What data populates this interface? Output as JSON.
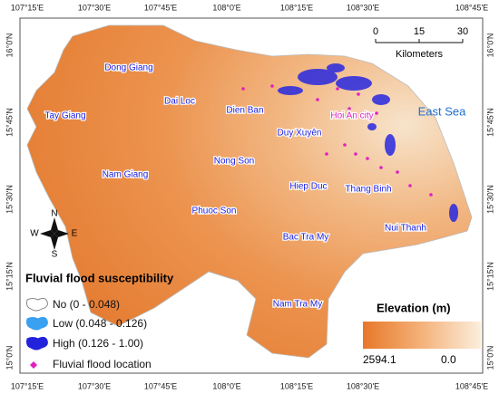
{
  "map": {
    "lon_ticks": [
      "107°15'E",
      "107°30'E",
      "107°45'E",
      "108°0'E",
      "108°15'E",
      "108°30'E",
      "108°45'E"
    ],
    "lat_ticks": [
      "16°0'N",
      "15°45'N",
      "15°30'N",
      "15°15'N",
      "15°0'N"
    ],
    "places": [
      "Dong Giang",
      "Dai Loc",
      "Dien Ban",
      "Tay Giang",
      "Duy Xuyên",
      "Hoi An city",
      "Nong Son",
      "Nam Giang",
      "Hiep Duc",
      "Thang Binh",
      "Phuoc Son",
      "Bac Tra My",
      "Nui Thanh",
      "Nam Tra My"
    ],
    "sea_label": "East Sea",
    "scale": {
      "ticks": [
        "0",
        "15",
        "30"
      ],
      "unit": "Kilometers"
    },
    "compass": {
      "n": "N",
      "e": "E",
      "s": "S",
      "w": "W"
    },
    "legend": {
      "title": "Fluvial flood susceptibility",
      "items": [
        "No (0 - 0.048)",
        "Low (0.048 - 0.126)",
        "High (0.126 - 1.00)",
        "Fluvial flood location"
      ]
    },
    "elevation": {
      "title": "Elevation (m)",
      "max": "2594.1",
      "min": "0.0"
    }
  }
}
